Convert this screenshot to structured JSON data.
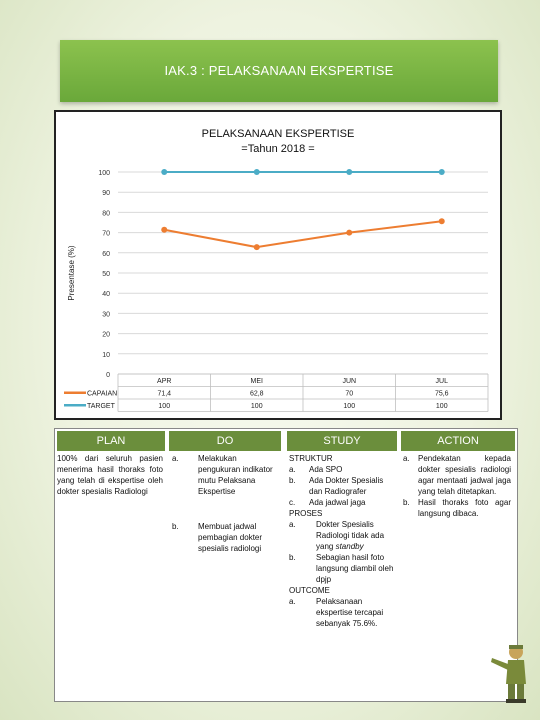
{
  "header": {
    "title": "IAK.3 : PELAKSANAAN EKSPERTISE"
  },
  "chart_data": {
    "type": "line",
    "title": "PELAKSANAAN EKSPERTISE",
    "subtitle": "=Tahun 2018 =",
    "ylabel": "Presentase (%)",
    "categories": [
      "APR",
      "MEI",
      "JUN",
      "JUL"
    ],
    "series": [
      {
        "name": "CAPAIAN",
        "values": [
          71.4,
          62.8,
          70,
          75.6
        ],
        "labels": [
          "71,4",
          "62,8",
          "70",
          "75,6"
        ],
        "color": "#ed7d31"
      },
      {
        "name": "TARGET",
        "values": [
          100,
          100,
          100,
          100
        ],
        "labels": [
          "100",
          "100",
          "100",
          "100"
        ],
        "color": "#4bacc6"
      }
    ],
    "ylim": [
      0,
      100
    ],
    "yticks": [
      0,
      10,
      20,
      30,
      40,
      50,
      60,
      70,
      80,
      90,
      100
    ],
    "grid": true,
    "data_table": true
  },
  "pdsa": {
    "headers": {
      "plan": "PLAN",
      "do": "DO",
      "study": "STUDY",
      "action": "ACTION"
    },
    "plan_text": "100% dari seluruh pasien menerima hasil thoraks foto yang telah di ekspertise oleh dokter spesialis Radiologi",
    "do_items": [
      {
        "marker": "a.",
        "text": "Melakukan pengukuran indikator mutu Pelaksana Ekspertise"
      },
      {
        "marker": "b.",
        "text": "Membuat jadwal pembagian dokter spesialis radiologi"
      }
    ],
    "study": {
      "struktur_label": "STRUKTUR",
      "struktur": [
        {
          "marker": "a.",
          "text": "Ada SPO"
        },
        {
          "marker": "b.",
          "text": "Ada Dokter Spesialis dan Radiografer"
        },
        {
          "marker": "c.",
          "text": "Ada jadwal jaga"
        }
      ],
      "proses_label": "PROSES",
      "proses": [
        {
          "marker": "a.",
          "text": "Dokter Spesialis Radiologi tidak ada yang ",
          "emph": "standby"
        },
        {
          "marker": "b.",
          "text": "Sebagian hasil foto langsung diambil oleh dpjp"
        }
      ],
      "outcome_label": "OUTCOME",
      "outcome": [
        {
          "marker": "a.",
          "text": "Pelaksanaan ekspertise tercapai sebanyak 75.6%."
        }
      ]
    },
    "action_items": [
      {
        "marker": "a.",
        "text": "Pendekatan kepada dokter spesialis radiologi agar mentaati jadwal jaga yang telah ditetapkan."
      },
      {
        "marker": "b.",
        "text": "Hasil thoraks foto agar langsung dibaca."
      }
    ]
  }
}
